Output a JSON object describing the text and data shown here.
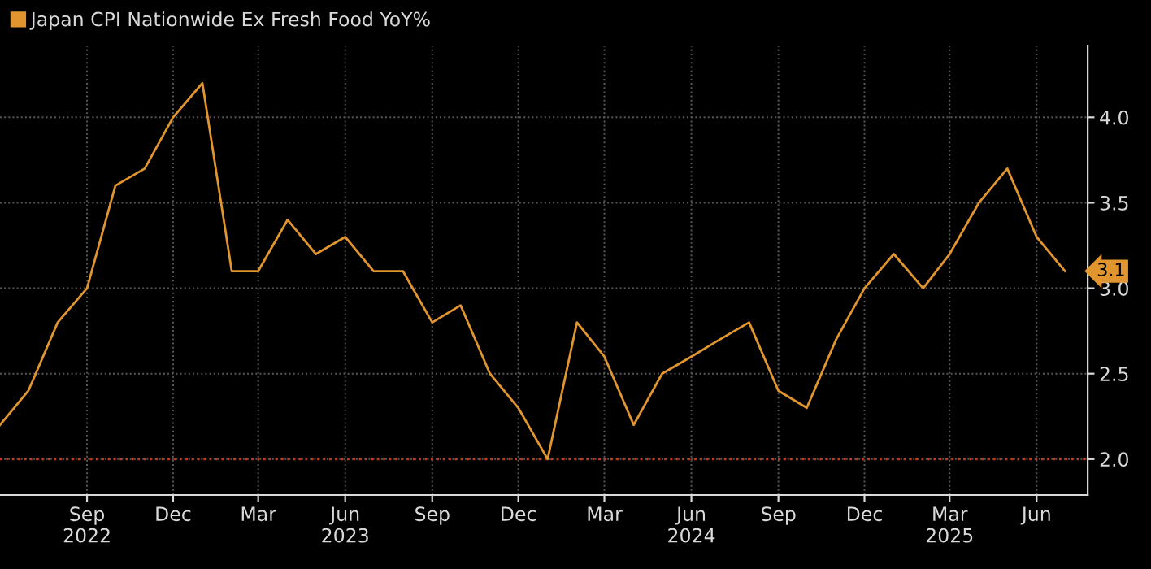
{
  "chart_data": {
    "type": "line",
    "x": [
      "2022-06",
      "2022-07",
      "2022-08",
      "2022-09",
      "2022-10",
      "2022-11",
      "2022-12",
      "2023-01",
      "2023-02",
      "2023-03",
      "2023-04",
      "2023-05",
      "2023-06",
      "2023-07",
      "2023-08",
      "2023-09",
      "2023-10",
      "2023-11",
      "2023-12",
      "2024-01",
      "2024-02",
      "2024-03",
      "2024-04",
      "2024-05",
      "2024-06",
      "2024-07",
      "2024-08",
      "2024-09",
      "2024-10",
      "2024-11",
      "2024-12",
      "2025-01",
      "2025-02",
      "2025-03",
      "2025-04",
      "2025-05",
      "2025-06",
      "2025-07"
    ],
    "series": [
      {
        "name": "Japan CPI Nationwide Ex Fresh Food YoY%",
        "color": "#e0952f",
        "values": [
          2.2,
          2.4,
          2.8,
          3.0,
          3.6,
          3.7,
          4.0,
          4.2,
          3.1,
          3.1,
          3.4,
          3.2,
          3.3,
          3.1,
          3.1,
          2.8,
          2.9,
          2.5,
          2.3,
          2.0,
          2.8,
          2.6,
          2.2,
          2.5,
          2.6,
          2.7,
          2.8,
          2.4,
          2.3,
          2.7,
          3.0,
          3.2,
          3.0,
          3.2,
          3.5,
          3.7,
          3.3,
          3.1
        ],
        "value_labels": [
          null,
          null,
          null,
          null,
          null,
          null,
          null,
          null,
          null,
          null,
          null,
          null,
          null,
          null,
          null,
          null,
          null,
          null,
          null,
          null,
          null,
          null,
          null,
          null,
          null,
          null,
          null,
          null,
          null,
          null,
          null,
          null,
          null,
          null,
          null,
          null,
          null,
          "3.1"
        ]
      }
    ],
    "xlim": [
      "2022-06-01",
      "2025-07-25"
    ],
    "xticks": [
      {
        "value": "2022-09-01",
        "label": "Sep\n2022"
      },
      {
        "value": "2022-12-01",
        "label": "Dec"
      },
      {
        "value": "2023-03-01",
        "label": "Mar"
      },
      {
        "value": "2023-06-01",
        "label": "Jun\n2023"
      },
      {
        "value": "2023-09-01",
        "label": "Sep"
      },
      {
        "value": "2023-12-01",
        "label": "Dec"
      },
      {
        "value": "2024-03-01",
        "label": "Mar"
      },
      {
        "value": "2024-06-01",
        "label": "Jun\n2024"
      },
      {
        "value": "2024-09-01",
        "label": "Sep"
      },
      {
        "value": "2024-12-01",
        "label": "Dec"
      },
      {
        "value": "2025-03-01",
        "label": "Mar\n2025"
      },
      {
        "value": "2025-06-01",
        "label": "Jun"
      }
    ],
    "ylim": [
      1.79,
      4.42
    ],
    "yticks": [
      {
        "value": 2.0,
        "label": "2.0"
      },
      {
        "value": 2.5,
        "label": "2.5"
      },
      {
        "value": 3.0,
        "label": "3.0"
      },
      {
        "value": 3.5,
        "label": "3.5"
      },
      {
        "value": 4.0,
        "label": "4.0"
      }
    ],
    "ref_lines": [
      {
        "axis": "y",
        "value": 2.0,
        "color": "#c0391b",
        "line_style": "dotted"
      }
    ],
    "grid": true,
    "legend": "top left",
    "marker": "none",
    "line_style": "solid"
  }
}
